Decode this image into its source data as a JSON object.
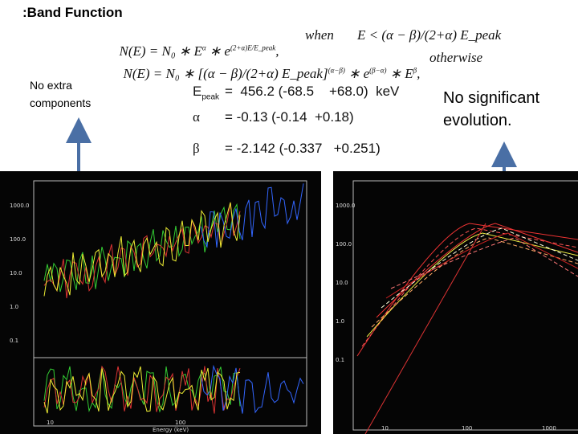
{
  "header": {
    "title": ":Band Function"
  },
  "equations": [
    {
      "terms": [
        {
          "base": "N(E) = N₀ ∗ E",
          "exp": "α"
        },
        {
          "base": " ∗ e",
          "exp": "(2+α)E/E_peak"
        }
      ],
      "tail": ",",
      "condition_word": "when",
      "condition": "E < (α − β)/(2+α) E_peak"
    },
    {
      "terms": [
        {
          "base": "N(E) = N₀ ∗ [(α − β)/(2+α) E_peak]",
          "exp": "(α−β)"
        },
        {
          "base": " ∗ e",
          "exp": "(β−α)"
        },
        {
          "base": " ∗ E",
          "exp": "β"
        }
      ],
      "tail": ",",
      "condition_word": "otherwise",
      "condition": ""
    }
  ],
  "left_note": "No extra components",
  "right_note": "No significant evolution.",
  "parameters": [
    {
      "symbol": "E",
      "sub": "peak",
      "value": "=  456.2 (-68.5    +68.0)  keV"
    },
    {
      "symbol": "α",
      "value": "= -0.13 (-0.14  +0.18)"
    },
    {
      "symbol": "β",
      "value": "= -2.142 (-0.337   +0.251)"
    }
  ],
  "plots": [
    {
      "y_ticks": [
        "1000.0",
        "100.0",
        "10.0",
        "1.0",
        "0.1"
      ],
      "x_ticks": [
        "10",
        "100"
      ],
      "x_label": "Energy (keV)"
    },
    {
      "y_ticks": [
        "1000.0",
        "100.0",
        "10.0",
        "1.0",
        "0.1"
      ],
      "x_ticks": [
        "10",
        "100",
        "1000"
      ]
    }
  ]
}
